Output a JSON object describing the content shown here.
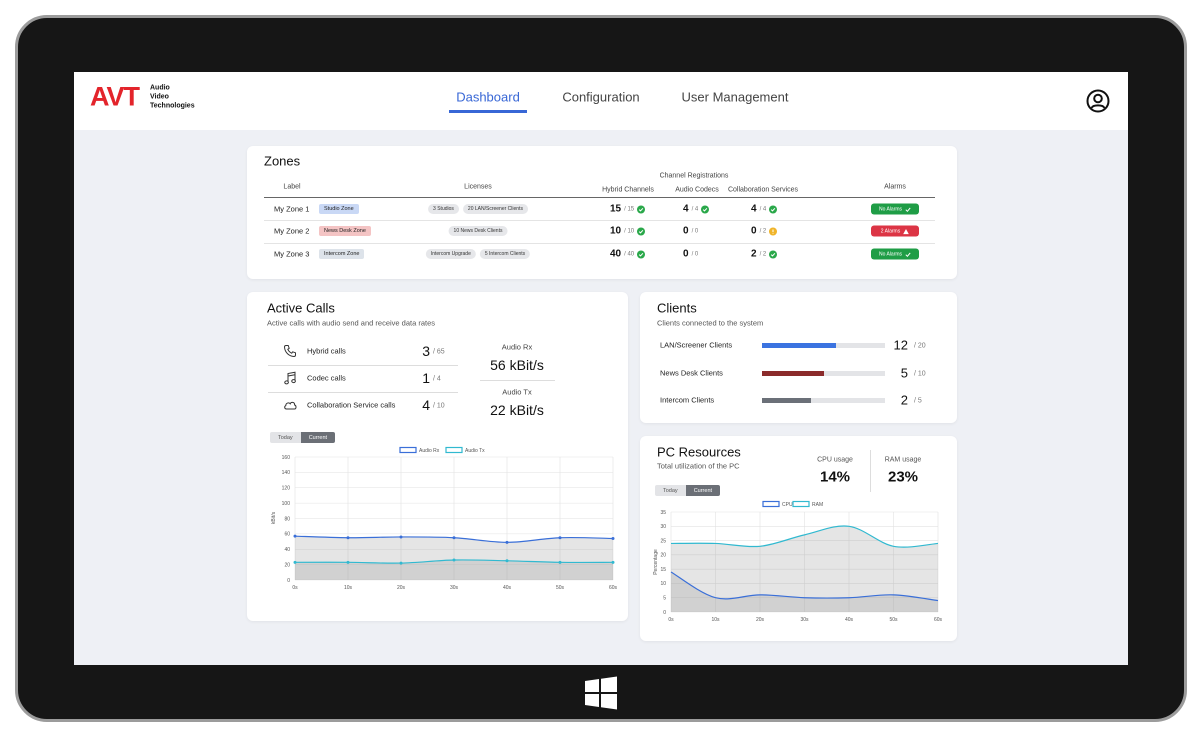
{
  "header": {
    "logo": "AVT",
    "logo_subtitle": [
      "Audio",
      "Video",
      "Technologies"
    ],
    "nav": [
      {
        "label": "Dashboard",
        "active": true
      },
      {
        "label": "Configuration",
        "active": false
      },
      {
        "label": "User Management",
        "active": false
      }
    ]
  },
  "zones": {
    "title": "Zones",
    "group_header": "Channel Registrations",
    "columns": [
      "Label",
      "Licenses",
      "Hybrid Channels",
      "Audio Codecs",
      "Collaboration Services",
      "Alarms"
    ],
    "rows": [
      {
        "name": "My Zone 1",
        "tag": "Studio Zone",
        "tag_color": "#c9d8f5",
        "licenses": [
          "3 Studios",
          "20 LAN/Screener Clients"
        ],
        "channels": [
          {
            "count": 15,
            "total": "/ 15",
            "status": "ok"
          },
          {
            "count": 4,
            "total": "/ 4",
            "status": "ok"
          },
          {
            "count": 4,
            "total": "/ 4",
            "status": "ok"
          }
        ],
        "alarm": {
          "label": "No Alarms",
          "level": "ok"
        }
      },
      {
        "name": "My Zone 2",
        "tag": "News Desk Zone",
        "tag_color": "#f4c4c4",
        "licenses": [
          "10 News Desk Clients"
        ],
        "channels": [
          {
            "count": 10,
            "total": "/ 10",
            "status": "ok"
          },
          {
            "count": 0,
            "total": "/ 0",
            "status": "none"
          },
          {
            "count": 0,
            "total": "/ 2",
            "status": "warn"
          }
        ],
        "alarm": {
          "label": "2 Alarms",
          "level": "alarm"
        }
      },
      {
        "name": "My Zone 3",
        "tag": "Intercom Zone",
        "tag_color": "#dde3ea",
        "licenses": [
          "Intercom Upgrade",
          "5 Intercom Clients"
        ],
        "channels": [
          {
            "count": 40,
            "total": "/ 40",
            "status": "ok"
          },
          {
            "count": 0,
            "total": "/ 0",
            "status": "none"
          },
          {
            "count": 2,
            "total": "/ 2",
            "status": "ok"
          }
        ],
        "alarm": {
          "label": "No Alarms",
          "level": "ok"
        }
      }
    ]
  },
  "active_calls": {
    "title": "Active Calls",
    "subtitle": "Active calls with audio send and receive data rates",
    "calls": [
      {
        "label": "Hybrid calls",
        "count": 3,
        "total": "/ 65",
        "icon": "phone"
      },
      {
        "label": "Codec calls",
        "count": 1,
        "total": "/ 4",
        "icon": "note"
      },
      {
        "label": "Collaboration Service calls",
        "count": 4,
        "total": "/ 10",
        "icon": "cloud"
      }
    ],
    "rates": [
      {
        "label": "Audio Rx",
        "value": "56 kBit/s"
      },
      {
        "label": "Audio Tx",
        "value": "22 kBit/s"
      }
    ],
    "toggle": [
      "Today",
      "Current"
    ],
    "toggle_active": 1
  },
  "clients": {
    "title": "Clients",
    "subtitle": "Clients connected to the system",
    "rows": [
      {
        "label": "LAN/Screener Clients",
        "count": 12,
        "total": 20,
        "total_label": "/ 20",
        "color": "#3b73e0"
      },
      {
        "label": "News Desk Clients",
        "count": 5,
        "total": 10,
        "total_label": "/ 10",
        "color": "#8b2b2b"
      },
      {
        "label": "Intercom Clients",
        "count": 2,
        "total": 5,
        "total_label": "/ 5",
        "color": "#6b7078"
      }
    ]
  },
  "pc_resources": {
    "title": "PC Resources",
    "subtitle": "Total utilization of the PC",
    "metrics": [
      {
        "label": "CPU usage",
        "value": "14%"
      },
      {
        "label": "RAM usage",
        "value": "23%"
      }
    ],
    "toggle": [
      "Today",
      "Current"
    ],
    "toggle_active": 1
  },
  "chart_data": [
    {
      "type": "line",
      "y_label": "kBit/s",
      "x": [
        0,
        10,
        20,
        30,
        40,
        50,
        60
      ],
      "xlim": [
        0,
        60
      ],
      "xticks": [
        {
          "value": 0,
          "label": "0s"
        },
        {
          "value": 10,
          "label": "10s"
        },
        {
          "value": 20,
          "label": "20s"
        },
        {
          "value": 30,
          "label": "30s"
        },
        {
          "value": 40,
          "label": "40s"
        },
        {
          "value": 50,
          "label": "50s"
        },
        {
          "value": 60,
          "label": "60s"
        }
      ],
      "ylim": [
        0,
        160
      ],
      "yticks": [
        0,
        20,
        40,
        60,
        80,
        100,
        120,
        140,
        160
      ],
      "grid": true,
      "markers": true,
      "series": [
        {
          "name": "Audio Rx",
          "color": "#3a6fd8",
          "values": [
            57,
            55,
            56,
            55,
            49,
            55,
            54
          ]
        },
        {
          "name": "Audio Tx",
          "color": "#31b9d0",
          "values": [
            23,
            23,
            22,
            26,
            25,
            23,
            23
          ]
        }
      ]
    },
    {
      "type": "line",
      "y_label": "Percentage",
      "x": [
        0,
        10,
        20,
        30,
        40,
        50,
        60
      ],
      "xlim": [
        0,
        60
      ],
      "xticks": [
        {
          "value": 0,
          "label": "0s"
        },
        {
          "value": 10,
          "label": "10s"
        },
        {
          "value": 20,
          "label": "20s"
        },
        {
          "value": 30,
          "label": "30s"
        },
        {
          "value": 40,
          "label": "40s"
        },
        {
          "value": 50,
          "label": "50s"
        },
        {
          "value": 60,
          "label": "60s"
        }
      ],
      "ylim": [
        0,
        35
      ],
      "yticks": [
        0,
        5,
        10,
        15,
        20,
        25,
        30,
        35
      ],
      "grid": true,
      "markers": false,
      "series": [
        {
          "name": "CPU",
          "color": "#3a6fd8",
          "values": [
            14,
            5,
            6,
            5,
            5,
            6,
            4
          ]
        },
        {
          "name": "RAM",
          "color": "#31b9d0",
          "values": [
            24,
            24,
            23,
            27,
            30,
            23,
            24
          ]
        }
      ]
    }
  ]
}
